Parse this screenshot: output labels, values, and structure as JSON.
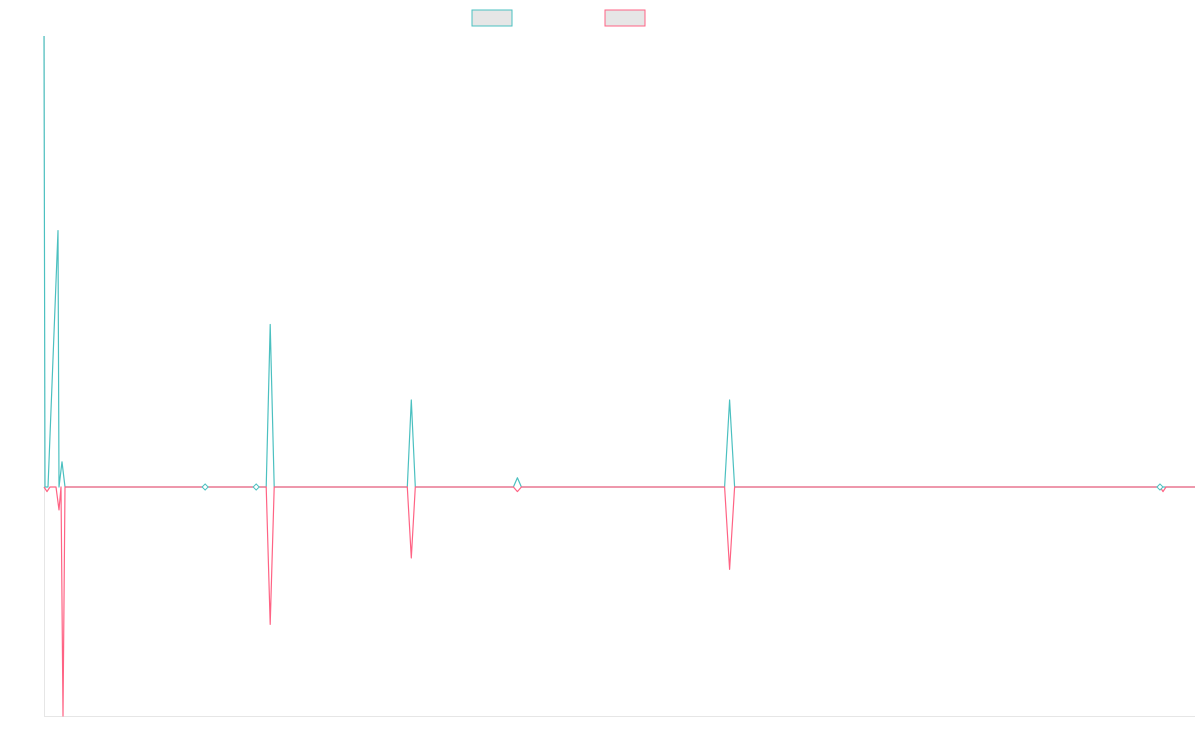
{
  "chart_data": {
    "type": "line",
    "title": "",
    "xlabel": "",
    "ylabel": "",
    "grid": false,
    "legend": "top-center",
    "x_range": [
      0,
      1150
    ],
    "y_range": [
      -100,
      197
    ],
    "colors": {
      "series_a": "#4bc0c0",
      "series_b": "#ff6384",
      "legend_fill": "#e6e6e6",
      "axis": "#e6e6e6"
    },
    "series": [
      {
        "name": "",
        "color": "#4bc0c0",
        "points": [
          [
            0,
            197
          ],
          [
            1,
            0
          ],
          [
            4,
            0
          ],
          [
            14,
            112
          ],
          [
            15,
            0
          ],
          [
            18,
            11
          ],
          [
            21,
            0
          ],
          [
            161,
            0
          ],
          [
            212,
            0
          ],
          [
            222,
            0
          ],
          [
            226,
            71
          ],
          [
            230,
            0
          ],
          [
            363,
            0
          ],
          [
            367,
            38
          ],
          [
            371,
            0
          ],
          [
            469,
            0
          ],
          [
            473,
            4
          ],
          [
            477,
            0
          ],
          [
            680,
            0
          ],
          [
            685,
            38
          ],
          [
            690,
            0
          ],
          [
            1115,
            0
          ],
          [
            1150,
            0
          ]
        ]
      },
      {
        "name": "",
        "color": "#ff6384",
        "points": [
          [
            0,
            0
          ],
          [
            3,
            -2
          ],
          [
            6,
            0
          ],
          [
            12,
            0
          ],
          [
            15,
            -10
          ],
          [
            17,
            0
          ],
          [
            19,
            -100
          ],
          [
            21,
            0
          ],
          [
            161,
            0
          ],
          [
            212,
            0
          ],
          [
            222,
            0
          ],
          [
            226,
            -60
          ],
          [
            230,
            0
          ],
          [
            363,
            0
          ],
          [
            367,
            -31
          ],
          [
            371,
            0
          ],
          [
            469,
            0
          ],
          [
            473,
            -2
          ],
          [
            477,
            0
          ],
          [
            680,
            0
          ],
          [
            685,
            -36
          ],
          [
            690,
            0
          ],
          [
            1115,
            0
          ],
          [
            1118,
            -2
          ],
          [
            1121,
            0
          ],
          [
            1150,
            0
          ]
        ]
      }
    ],
    "markers": [
      {
        "x": 161,
        "y": 0
      },
      {
        "x": 212,
        "y": 0
      },
      {
        "x": 1115,
        "y": 0
      }
    ]
  }
}
